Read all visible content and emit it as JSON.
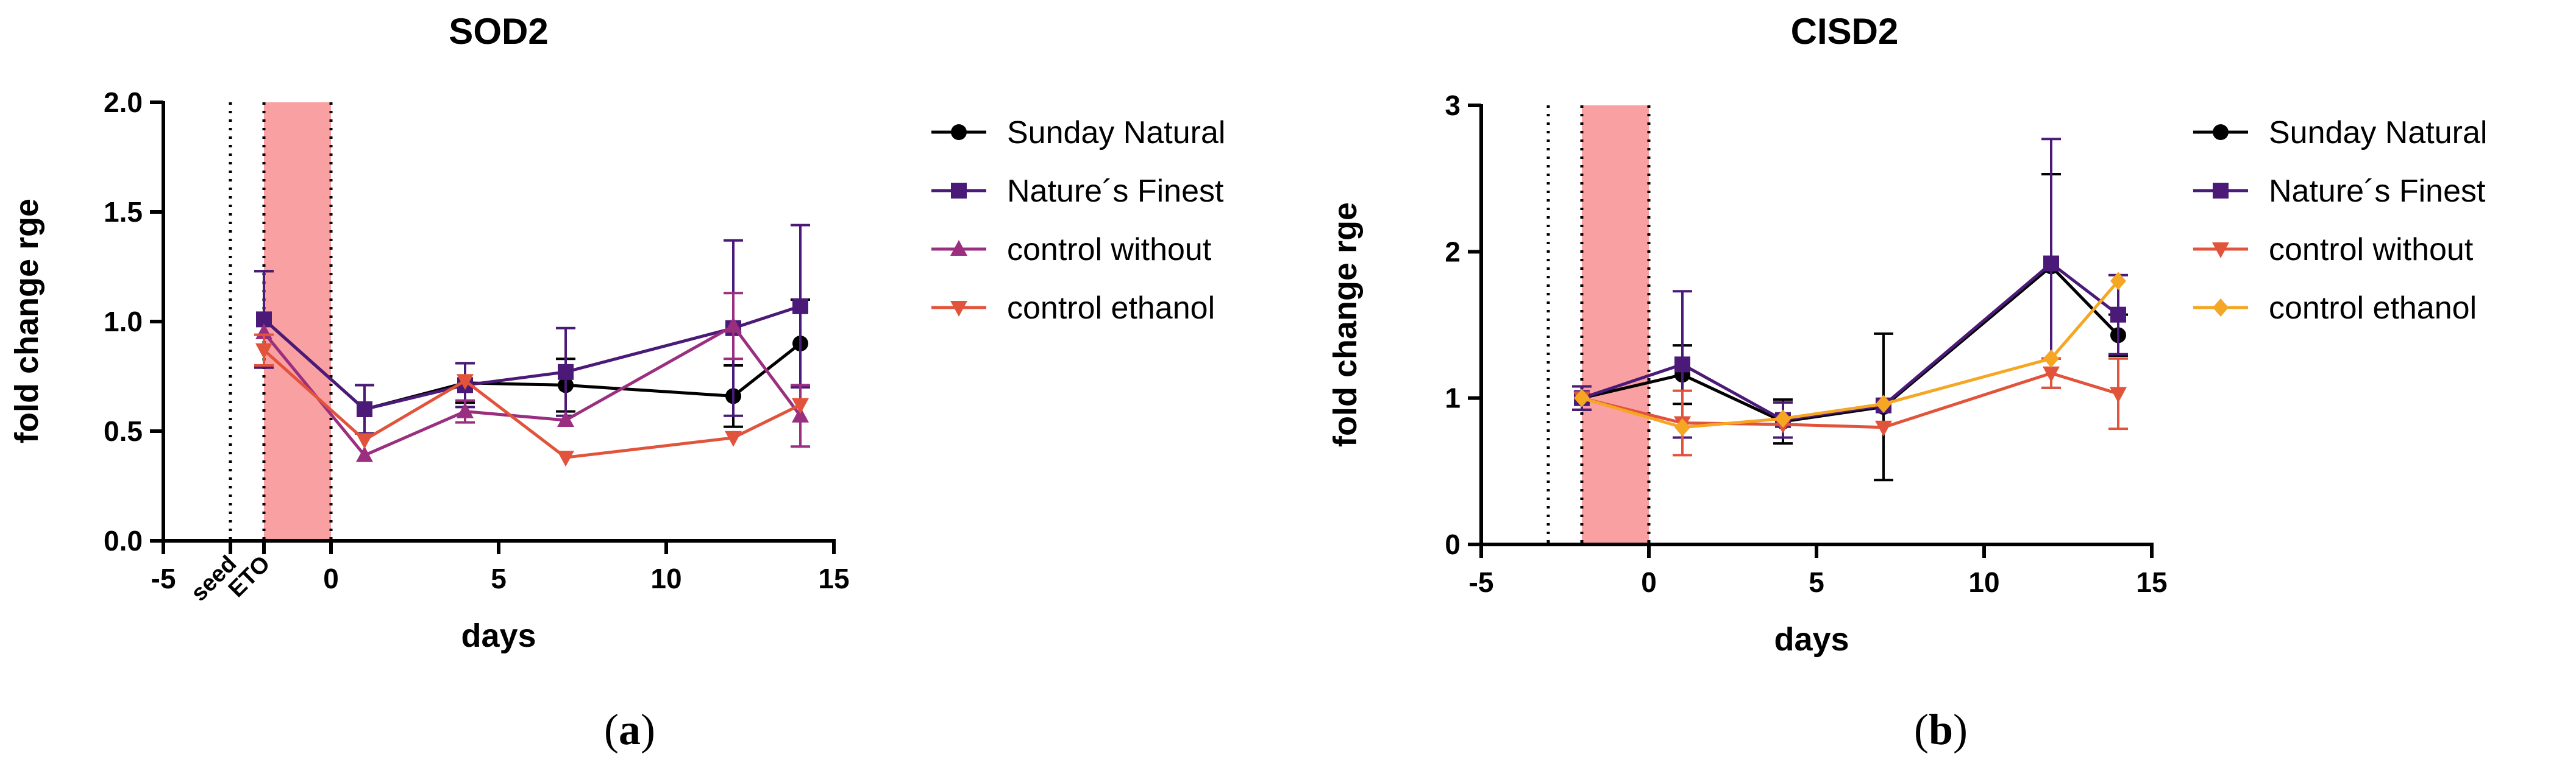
{
  "chart_data": [
    {
      "type": "line",
      "title": "SOD2",
      "xlabel": "days",
      "ylabel": "fold change rge",
      "xlim": [
        -5,
        15
      ],
      "ylim": [
        0,
        2
      ],
      "xticks": [
        "-5",
        "0",
        "5",
        "10",
        "15"
      ],
      "xtick_values": [
        -5,
        0,
        5,
        10,
        15
      ],
      "yticks": [
        "0.0",
        "0.5",
        "1.0",
        "1.5",
        "2.0"
      ],
      "ytick_values": [
        0,
        0.5,
        1.0,
        1.5,
        2.0
      ],
      "extra_xlabels": [
        {
          "text": "seed",
          "x": -3
        },
        {
          "text": "ETO",
          "x": -2
        }
      ],
      "vlines": [
        -3,
        -2,
        0
      ],
      "shaded_range": [
        -2,
        0
      ],
      "panel_label": "a",
      "legend_position": "right",
      "series": [
        {
          "name": "Sunday Natural",
          "color": "#000000",
          "marker": "circle",
          "x": [
            -2,
            1,
            4,
            7,
            12,
            14
          ],
          "y": [
            1.01,
            0.6,
            0.72,
            0.71,
            0.66,
            0.9
          ],
          "err": [
            0.22,
            0.11,
            0.09,
            0.12,
            0.14,
            0.2
          ]
        },
        {
          "name": "Nature´s Finest",
          "color": "#4b1a78",
          "marker": "square",
          "x": [
            -2,
            1,
            4,
            7,
            12,
            14
          ],
          "y": [
            1.01,
            0.6,
            0.71,
            0.77,
            0.97,
            1.07
          ],
          "err": [
            0.22,
            0.11,
            0.1,
            0.2,
            0.4,
            0.37
          ]
        },
        {
          "name": "control without",
          "color": "#9b2f7f",
          "marker": "triangle-up",
          "x": [
            -2,
            1,
            4,
            7,
            12,
            14
          ],
          "y": [
            0.95,
            0.39,
            0.59,
            0.55,
            0.98,
            0.57
          ],
          "err": [
            0,
            0,
            0.05,
            0,
            0.15,
            0.14
          ]
        },
        {
          "name": "control ethanol",
          "color": "#e2533b",
          "marker": "triangle-down",
          "x": [
            -2,
            1,
            4,
            7,
            12,
            14
          ],
          "y": [
            0.87,
            0.46,
            0.73,
            0.38,
            0.47,
            0.62
          ],
          "err": [
            0.07,
            0,
            0,
            0,
            0,
            0
          ]
        }
      ]
    },
    {
      "type": "line",
      "title": "CISD2",
      "xlabel": "days",
      "ylabel": "fold change rge",
      "xlim": [
        -5,
        15
      ],
      "ylim": [
        0,
        3
      ],
      "xticks": [
        "-5",
        "0",
        "5",
        "10",
        "15"
      ],
      "xtick_values": [
        -5,
        0,
        5,
        10,
        15
      ],
      "yticks": [
        "0",
        "1",
        "2",
        "3"
      ],
      "ytick_values": [
        0,
        1,
        2,
        3
      ],
      "extra_xlabels": [],
      "vlines": [
        -3,
        -2,
        0
      ],
      "shaded_range": [
        -2,
        0
      ],
      "panel_label": "b",
      "legend_position": "right",
      "series": [
        {
          "name": "Sunday Natural",
          "color": "#000000",
          "marker": "circle",
          "x": [
            -2,
            1,
            4,
            7,
            12,
            14
          ],
          "y": [
            1.0,
            1.16,
            0.84,
            0.94,
            1.9,
            1.43
          ],
          "err": [
            0.08,
            0.2,
            0.15,
            0.5,
            0.63,
            0.14
          ]
        },
        {
          "name": "Nature´s Finest",
          "color": "#4b1a78",
          "marker": "square",
          "x": [
            -2,
            1,
            4,
            7,
            12,
            14
          ],
          "y": [
            1.0,
            1.23,
            0.85,
            0.95,
            1.92,
            1.57
          ],
          "err": [
            0.08,
            0.5,
            0.12,
            0,
            0.85,
            0.27
          ]
        },
        {
          "name": "control without",
          "color": "#e2533b",
          "marker": "triangle-down",
          "x": [
            -2,
            1,
            4,
            7,
            12,
            14
          ],
          "y": [
            1.0,
            0.83,
            0.82,
            0.8,
            1.17,
            1.03
          ],
          "err": [
            0,
            0.22,
            0,
            0,
            0.1,
            0.24
          ]
        },
        {
          "name": "control ethanol",
          "color": "#f5a623",
          "marker": "diamond",
          "x": [
            -2,
            1,
            4,
            7,
            12,
            14
          ],
          "y": [
            1.0,
            0.8,
            0.86,
            0.96,
            1.27,
            1.8
          ],
          "err": [
            0,
            0,
            0,
            0,
            0,
            0
          ]
        }
      ]
    }
  ]
}
